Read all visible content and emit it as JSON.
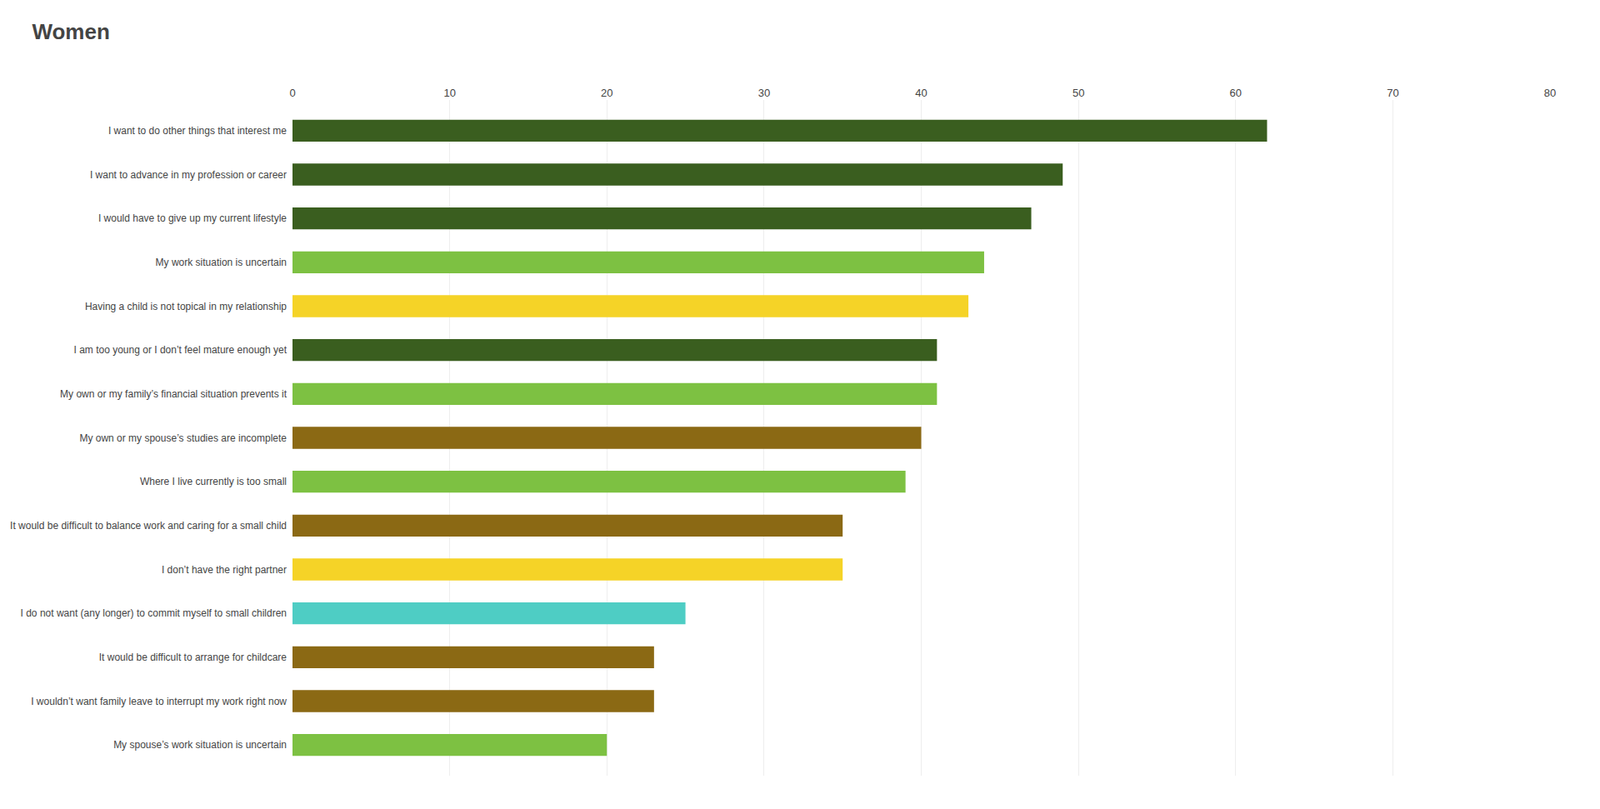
{
  "chart_data": {
    "type": "bar",
    "title": "Women",
    "orientation": "horizontal",
    "categories": [
      "I want to do other things that interest me",
      "I want to advance in my profession or career",
      "I would have to give up my current lifestyle",
      "My work situation is uncertain",
      "Having a child is not topical in my relationship",
      "I am too young or I don’t feel mature enough yet",
      "My own or my family’s financial situation prevents it",
      "My own or my spouse’s studies are incomplete",
      "Where I live currently is too small",
      "It would be difficult to balance work and caring for a small child",
      "I don’t have the right partner",
      "I do not want (any longer) to commit myself to small children",
      "It would be difficult to arrange for childcare",
      "I wouldn’t want family leave to interrupt my work right now",
      "My spouse’s work situation is uncertain"
    ],
    "values": [
      62,
      49,
      47,
      44,
      43,
      41,
      41,
      40,
      39,
      35,
      35,
      25,
      23,
      23,
      20
    ],
    "colors": [
      "#3a5e1f",
      "#3a5e1f",
      "#3a5e1f",
      "#7dc142",
      "#f5d327",
      "#3a5e1f",
      "#7dc142",
      "#8b6914",
      "#7dc142",
      "#8b6914",
      "#f5d327",
      "#4ecdc4",
      "#8b6914",
      "#8b6914",
      "#7dc142"
    ],
    "xlim": [
      0,
      80
    ],
    "xticks": [
      0,
      10,
      20,
      30,
      40,
      50,
      60,
      70,
      80
    ],
    "grid": true
  }
}
